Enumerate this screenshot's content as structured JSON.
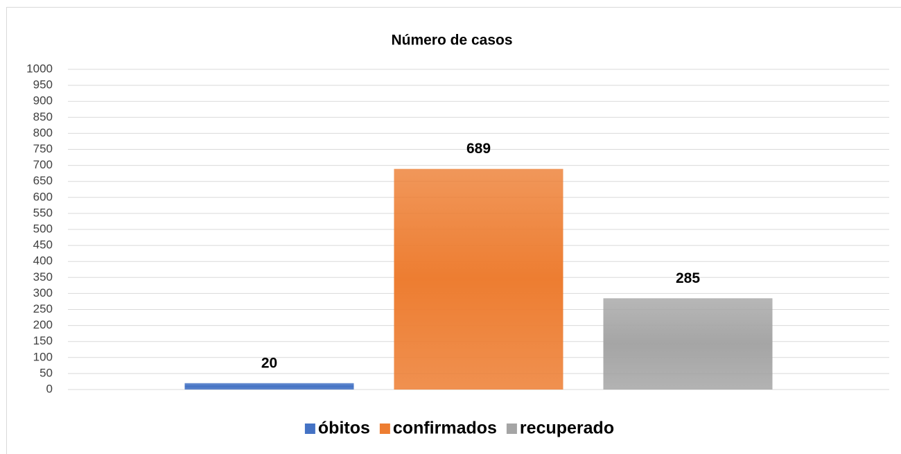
{
  "chart_data": {
    "type": "bar",
    "title": "Número de casos",
    "categories": [
      null
    ],
    "series": [
      {
        "name": "óbitos",
        "color": "#4472c4",
        "values": [
          20
        ]
      },
      {
        "name": "confirmados",
        "color": "#ed7d31",
        "values": [
          689
        ]
      },
      {
        "name": "recuperado",
        "color": "#a5a5a5",
        "values": [
          285
        ]
      }
    ],
    "ylim": [
      0,
      1000
    ],
    "yticks": [
      0,
      50,
      100,
      150,
      200,
      250,
      300,
      350,
      400,
      450,
      500,
      550,
      600,
      650,
      700,
      750,
      800,
      850,
      900,
      950,
      1000
    ],
    "grid": true,
    "legend": "bottom"
  }
}
